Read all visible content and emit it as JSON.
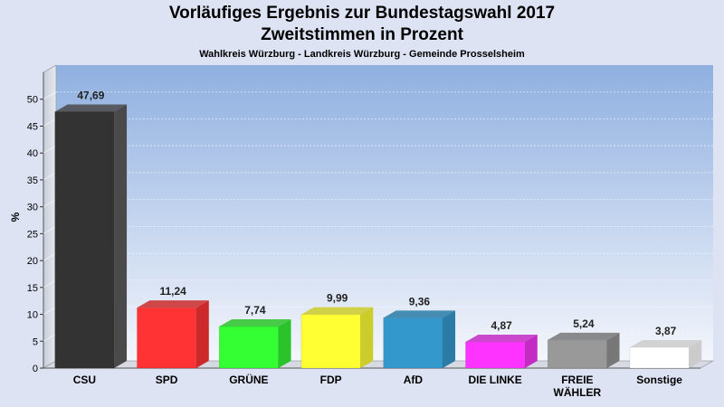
{
  "header": {
    "title": "Vorläufiges Ergebnis zur Bundestagswahl 2017",
    "subtitle": "Zweitstimmen in Prozent",
    "region": "Wahlkreis Würzburg - Landkreis Würzburg - Gemeinde Prosselsheim"
  },
  "chart_data": {
    "type": "bar",
    "title": "Vorläufiges Ergebnis zur Bundestagswahl 2017",
    "subtitle": "Zweitstimmen in Prozent",
    "xlabel": "",
    "ylabel": "%",
    "ylim": [
      0,
      55
    ],
    "yticks": [
      0,
      5,
      10,
      15,
      20,
      25,
      30,
      35,
      40,
      45,
      50
    ],
    "grid": true,
    "categories": [
      "CSU",
      "SPD",
      "GRÜNE",
      "FDP",
      "AfD",
      "DIE LINKE",
      "FREIE WÄHLER",
      "Sonstige"
    ],
    "category_lines": [
      [
        "CSU"
      ],
      [
        "SPD"
      ],
      [
        "GRÜNE"
      ],
      [
        "FDP"
      ],
      [
        "AfD"
      ],
      [
        "DIE LINKE"
      ],
      [
        "FREIE",
        "WÄHLER"
      ],
      [
        "Sonstige"
      ]
    ],
    "values": [
      47.69,
      11.24,
      7.74,
      9.99,
      9.36,
      4.87,
      5.24,
      3.87
    ],
    "value_labels": [
      "47,69",
      "11,24",
      "7,74",
      "9,99",
      "9,36",
      "4,87",
      "5,24",
      "3,87"
    ],
    "colors": [
      "#333333",
      "#ff3333",
      "#33ff33",
      "#ffff33",
      "#3399cc",
      "#ff33ff",
      "#999999",
      "#ffffff"
    ],
    "side_colors": [
      "#4a4a4a",
      "#cc2a2a",
      "#2ac42a",
      "#cccc2a",
      "#2a7ba6",
      "#c42ac4",
      "#777777",
      "#cccccc"
    ]
  }
}
